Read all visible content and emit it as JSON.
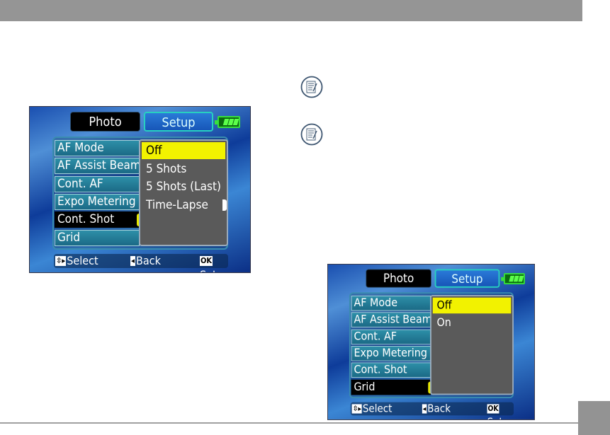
{
  "screens": [
    {
      "tabs": {
        "photo": "Photo",
        "setup": "Setup"
      },
      "menu": [
        "AF Mode",
        "AF Assist Beam",
        "Cont. AF",
        "Expo Metering",
        "Cont. Shot",
        "Grid"
      ],
      "selected_menu_index": 4,
      "options": [
        "Off",
        "5 Shots",
        "5 Shots (Last)",
        "Time-Lapse"
      ],
      "selected_option_index": 0,
      "footer": {
        "select_key": "⇳▸",
        "select": "Select",
        "back_key": "◂",
        "back": "Back",
        "ok_key": "OK",
        "set": "Set"
      }
    },
    {
      "tabs": {
        "photo": "Photo",
        "setup": "Setup"
      },
      "menu": [
        "AF Mode",
        "AF Assist Beam",
        "Cont. AF",
        "Expo Metering",
        "Cont. Shot",
        "Grid"
      ],
      "selected_menu_index": 5,
      "options": [
        "Off",
        "On"
      ],
      "selected_option_index": 0,
      "footer": {
        "select_key": "⇳▸",
        "select": "Select",
        "back_key": "◂",
        "back": "Back",
        "ok_key": "OK",
        "set": "Set"
      }
    }
  ],
  "icons": {
    "note": "note-pencil-icon",
    "battery": "battery-full-icon"
  },
  "colors": {
    "highlight": "#f2f200",
    "battery": "#37e03a",
    "header_bar": "#959595"
  }
}
